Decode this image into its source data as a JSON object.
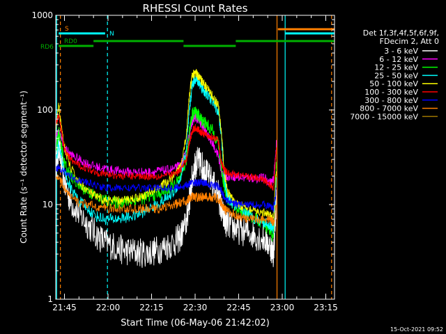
{
  "chart_data": {
    "type": "line",
    "title": "RHESSI Count Rates",
    "xlabel": "Start Time (06-May-06 21:42:02)",
    "ylabel": "Count Rate (s⁻¹ detector segment⁻¹)",
    "yscale": "log",
    "ylim": [
      1,
      1000
    ],
    "xlim_minutes_after_2142": [
      0,
      96
    ],
    "xticks": [
      {
        "label": "21:45",
        "t": 3
      },
      {
        "label": "22:00",
        "t": 18
      },
      {
        "label": "22:15",
        "t": 33
      },
      {
        "label": "22:30",
        "t": 48
      },
      {
        "label": "22:45",
        "t": 63
      },
      {
        "label": "23:00",
        "t": 78
      },
      {
        "label": "23:15",
        "t": 93
      }
    ],
    "yticks": [
      {
        "label": "1",
        "v": 1
      },
      {
        "label": "10",
        "v": 10
      },
      {
        "label": "100",
        "v": 100
      },
      {
        "label": "1000",
        "v": 1000
      }
    ],
    "legend_header": [
      "Det 1f,3f,4f,5f,6f,9f,",
      "FDecim 2, Att 0"
    ],
    "legend_placement": "right",
    "series": [
      {
        "name": "3 - 6 keV",
        "color": "#ffffff",
        "t": [
          0,
          1,
          3,
          5,
          8,
          11,
          14,
          17,
          20,
          23,
          26,
          29,
          32,
          35,
          38,
          41,
          43,
          45,
          46,
          47,
          48,
          49,
          50,
          51,
          52,
          54,
          56,
          57,
          58,
          59,
          61,
          63,
          66,
          69,
          72,
          74,
          75,
          76
        ],
        "v": [
          25,
          40,
          17,
          11,
          8,
          6.2,
          4.8,
          4,
          3.6,
          3.3,
          3.2,
          3.1,
          3.1,
          3.3,
          3.6,
          4,
          4.6,
          6.5,
          11,
          19,
          26,
          29,
          27,
          24,
          21,
          17,
          13,
          9,
          7,
          6.3,
          5.8,
          5.4,
          5.1,
          4.7,
          4.3,
          3.6,
          3,
          12
        ]
      },
      {
        "name": "6 - 12 keV",
        "color": "#ff00ff",
        "t": [
          0,
          1,
          3,
          5,
          8,
          11,
          14,
          17,
          20,
          23,
          26,
          29,
          32,
          35,
          38,
          41,
          43,
          45,
          46,
          47,
          48,
          49,
          50,
          51,
          52,
          54,
          56,
          57,
          58,
          59,
          61,
          63,
          66,
          69,
          72,
          74,
          75,
          76
        ],
        "v": [
          50,
          60,
          40,
          34,
          30,
          27,
          25,
          24,
          23,
          22.5,
          22,
          22,
          22,
          22.5,
          23,
          24,
          26,
          35,
          55,
          75,
          85,
          78,
          70,
          65,
          55,
          45,
          33,
          22,
          20,
          20,
          20,
          19.5,
          19,
          19,
          19,
          17,
          18,
          45
        ]
      },
      {
        "name": "12 - 25 keV",
        "color": "#00ff00",
        "t": [
          0,
          1,
          3,
          5,
          8,
          11,
          14,
          17,
          20,
          23,
          26,
          29,
          32,
          35,
          38,
          41,
          43,
          45,
          46,
          47,
          48,
          49,
          50,
          51,
          52,
          54,
          56,
          57,
          58,
          59,
          61,
          63,
          66,
          69,
          72,
          74,
          75,
          76
        ],
        "v": [
          35,
          60,
          27,
          20,
          16,
          14,
          12,
          11,
          10.5,
          10.5,
          11,
          11.5,
          12,
          13,
          14,
          16,
          19,
          30,
          60,
          90,
          95,
          88,
          80,
          75,
          70,
          60,
          45,
          25,
          16,
          12,
          10,
          9,
          8,
          7,
          6,
          5,
          4.5,
          30
        ]
      },
      {
        "name": "25 - 50 keV",
        "color": "#00ffff",
        "t": [
          0,
          1,
          3,
          5,
          8,
          11,
          14,
          17,
          20,
          23,
          26,
          29,
          32,
          35,
          38,
          41,
          43,
          45,
          46,
          47,
          48,
          49,
          50,
          51,
          52,
          54,
          56,
          57,
          58,
          59,
          61,
          63,
          66,
          69,
          72,
          74,
          75,
          76
        ],
        "v": [
          28,
          45,
          22,
          15,
          11,
          9,
          7.5,
          7,
          7,
          7.2,
          7.5,
          8,
          9,
          10,
          11.5,
          14,
          19,
          40,
          95,
          185,
          215,
          200,
          180,
          160,
          145,
          125,
          95,
          55,
          20,
          12,
          10,
          9,
          8,
          7,
          6.5,
          6,
          5.5,
          20
        ]
      },
      {
        "name": "50 - 100 keV",
        "color": "#ffff00",
        "t": [
          0,
          1,
          3,
          5,
          8,
          11,
          14,
          17,
          20,
          23,
          26,
          29,
          32,
          35,
          38,
          41,
          43,
          45,
          46,
          47,
          48,
          49,
          50,
          51,
          52,
          54,
          56,
          57,
          58,
          59,
          61,
          63,
          66,
          69,
          72,
          74,
          75,
          76
        ],
        "v": [
          60,
          110,
          40,
          25,
          17,
          14,
          12,
          11,
          11,
          11,
          11.5,
          12,
          13,
          15,
          17,
          20,
          26,
          55,
          140,
          230,
          250,
          230,
          210,
          190,
          170,
          140,
          110,
          60,
          24,
          14,
          11,
          10,
          9,
          8.5,
          8,
          7.5,
          7,
          25
        ]
      },
      {
        "name": "100 - 300 keV",
        "color": "#ff0000",
        "t": [
          0,
          1,
          3,
          5,
          8,
          11,
          14,
          17,
          20,
          23,
          26,
          29,
          32,
          35,
          38,
          41,
          43,
          45,
          46,
          47,
          48,
          49,
          50,
          51,
          52,
          54,
          56,
          57,
          58,
          59,
          61,
          63,
          66,
          69,
          72,
          74,
          75,
          76
        ],
        "v": [
          70,
          90,
          38,
          30,
          26,
          24,
          22,
          21,
          20.5,
          20,
          20,
          20,
          20,
          20,
          20.5,
          21,
          23,
          30,
          45,
          60,
          65,
          62,
          58,
          56,
          54,
          52,
          47,
          28,
          23,
          22,
          21,
          20.5,
          20,
          19,
          18,
          16,
          15,
          40
        ]
      },
      {
        "name": "300 - 800 keV",
        "color": "#0000ff",
        "t": [
          0,
          1,
          3,
          5,
          8,
          11,
          14,
          17,
          20,
          23,
          26,
          29,
          32,
          35,
          38,
          41,
          43,
          45,
          46,
          47,
          48,
          49,
          50,
          51,
          52,
          54,
          56,
          57,
          58,
          59,
          61,
          63,
          66,
          69,
          72,
          74,
          75,
          76
        ],
        "v": [
          24,
          25,
          22,
          20,
          18,
          17,
          16,
          15,
          15,
          15,
          15,
          15,
          15,
          15,
          15,
          15,
          15.5,
          16,
          16.5,
          17,
          17,
          17,
          17,
          17,
          16.5,
          16,
          15.5,
          14,
          12,
          11,
          10.5,
          10,
          10,
          10,
          10,
          9.5,
          9,
          15
        ]
      },
      {
        "name": "800 - 7000 keV",
        "color": "#ff8000",
        "t": [
          0,
          1,
          3,
          5,
          8,
          11,
          14,
          17,
          20,
          23,
          26,
          29,
          32,
          35,
          38,
          41,
          43,
          45,
          46,
          47,
          48,
          49,
          50,
          51,
          52,
          54,
          56,
          57,
          58,
          59,
          61,
          63,
          66,
          69,
          72,
          74,
          75,
          76
        ],
        "v": [
          18,
          20,
          15,
          12,
          10.5,
          10,
          9.5,
          9.2,
          9,
          9,
          9,
          9,
          9,
          9,
          9.5,
          10,
          10.5,
          11,
          11.5,
          12,
          12,
          12,
          12,
          12,
          12,
          12,
          11.5,
          10.5,
          9,
          8.5,
          8,
          7.5,
          7,
          7,
          7,
          7,
          6.5,
          10
        ]
      },
      {
        "name": "7000 - 15000 keV",
        "color": "#a07800",
        "t": [],
        "v": []
      }
    ],
    "flags": [
      {
        "label": "RD6",
        "color": "#00b000",
        "segments": [
          [
            1,
            13
          ]
        ]
      },
      {
        "label": "RD0",
        "color": "#00b000",
        "segments": [
          [
            13,
            44
          ],
          [
            44,
            62
          ],
          [
            62,
            96
          ]
        ]
      },
      {
        "label": "S",
        "color": "#ff8000",
        "segments": [
          [
            76.5,
            96
          ]
        ]
      },
      {
        "label": "N",
        "color": "#00ffff",
        "segments": [
          [
            1,
            17
          ],
          [
            79,
            96
          ]
        ]
      }
    ]
  },
  "footer": {
    "date_stamp": "15-Oct-2021 09:52"
  }
}
